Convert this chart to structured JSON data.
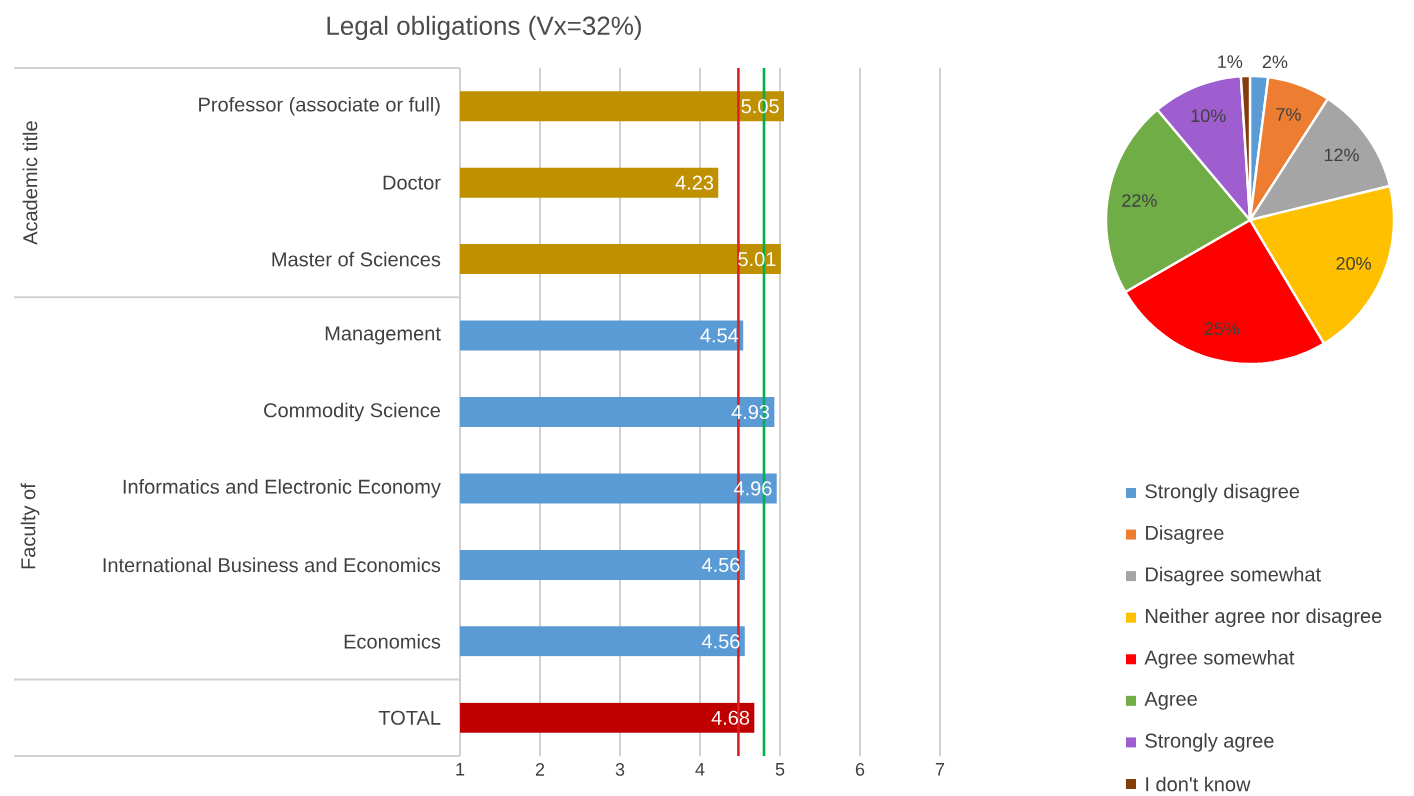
{
  "chart_data": [
    {
      "type": "bar",
      "orientation": "horizontal",
      "title": "Legal obligations (Vx=32%)",
      "categories": [
        "Professor (associate or full)",
        "Doctor",
        "Master of Sciences",
        "Management",
        "Commodity Science",
        "Informatics and Electronic Economy",
        "International Business and Economics",
        "Economics",
        "TOTAL"
      ],
      "values": [
        5.05,
        4.23,
        5.01,
        4.54,
        4.93,
        4.96,
        4.56,
        4.56,
        4.68
      ],
      "colors": [
        "#bf9000",
        "#bf9000",
        "#bf9000",
        "#5b9bd5",
        "#5b9bd5",
        "#5b9bd5",
        "#5b9bd5",
        "#5b9bd5",
        "#c00000"
      ],
      "data_labels": true,
      "xlim": [
        1,
        7
      ],
      "xticks": [
        1,
        2,
        3,
        4,
        5,
        6,
        7
      ],
      "grid": "x",
      "ref_lines": [
        {
          "axis": "x",
          "value": 4.48,
          "color": "#e02020"
        },
        {
          "axis": "x",
          "value": 4.8,
          "color": "#00b050"
        }
      ],
      "annotations": [
        "Academic title",
        "Faculty of"
      ]
    },
    {
      "type": "pie",
      "categories": [
        "Strongly disagree",
        "Disagree",
        "Disagree somewhat",
        "Neither agree nor disagree",
        "Agree somewhat",
        "Agree",
        "Strongly agree",
        "I don't know"
      ],
      "values": [
        2,
        7,
        12,
        20,
        25,
        22,
        10,
        1
      ],
      "value_labels": [
        "2%",
        "7%",
        "12%",
        "20%",
        "25%",
        "22%",
        "10%",
        "1%"
      ],
      "colors": [
        "#5b9bd5",
        "#ed7d31",
        "#a5a5a5",
        "#ffc000",
        "#ff0000",
        "#70ad47",
        "#9e5ecf",
        "#843c0c"
      ],
      "legend": "bottom"
    }
  ]
}
